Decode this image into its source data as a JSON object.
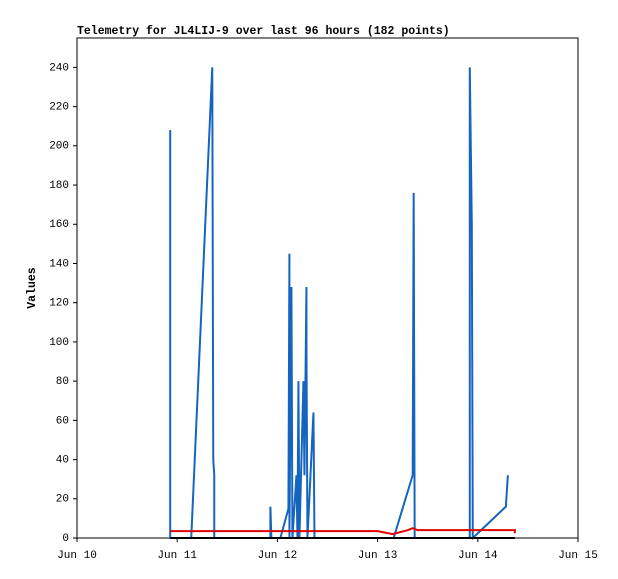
{
  "chart_data": {
    "type": "line",
    "title": "Telemetry for JL4LIJ-9 over last 96 hours (182 points)",
    "y_label": "Values",
    "xlim": [
      10,
      15
    ],
    "xticks": [
      {
        "value": 10,
        "label": "Jun 10"
      },
      {
        "value": 11,
        "label": "Jun 11"
      },
      {
        "value": 12,
        "label": "Jun 12"
      },
      {
        "value": 13,
        "label": "Jun 13"
      },
      {
        "value": 14,
        "label": "Jun 14"
      },
      {
        "value": 15,
        "label": "Jun 15"
      }
    ],
    "ylim": [
      0,
      255
    ],
    "yticks": [
      0,
      20,
      40,
      60,
      80,
      100,
      120,
      140,
      160,
      180,
      200,
      220,
      240
    ],
    "series": [
      {
        "color": "#1565c0",
        "x": [
          10.93,
          10.93,
          11.14,
          11.35,
          11.36,
          11.37,
          11.37,
          11.93,
          11.93,
          11.94,
          12.03,
          12.11,
          12.12,
          12.12,
          12.14,
          12.15,
          12.19,
          12.2,
          12.21,
          12.22,
          12.26,
          12.27,
          12.29,
          12.29,
          12.3,
          12.36,
          12.37,
          13.16,
          13.35,
          13.36,
          13.37,
          13.92,
          13.92,
          13.94,
          13.95,
          14.28,
          14.3
        ],
        "values": [
          208,
          0,
          0,
          240,
          40,
          32,
          0,
          0,
          16,
          0,
          0,
          15,
          145,
          0,
          128,
          0,
          32,
          0,
          80,
          0,
          80,
          32,
          128,
          96,
          0,
          64,
          0,
          0,
          32,
          176,
          0,
          0,
          240,
          160,
          0,
          16,
          32
        ]
      },
      {
        "color": "#e00000",
        "x": [
          10.93,
          13.0,
          13.1,
          13.15,
          13.3,
          13.35,
          13.4,
          14.37,
          14.37
        ],
        "values": [
          3.5,
          3.5,
          2.5,
          2,
          4,
          5,
          4,
          4,
          2.5
        ]
      },
      {
        "color": "#000000",
        "x": [
          10.93,
          14.37
        ],
        "values": [
          0,
          0
        ]
      }
    ]
  }
}
